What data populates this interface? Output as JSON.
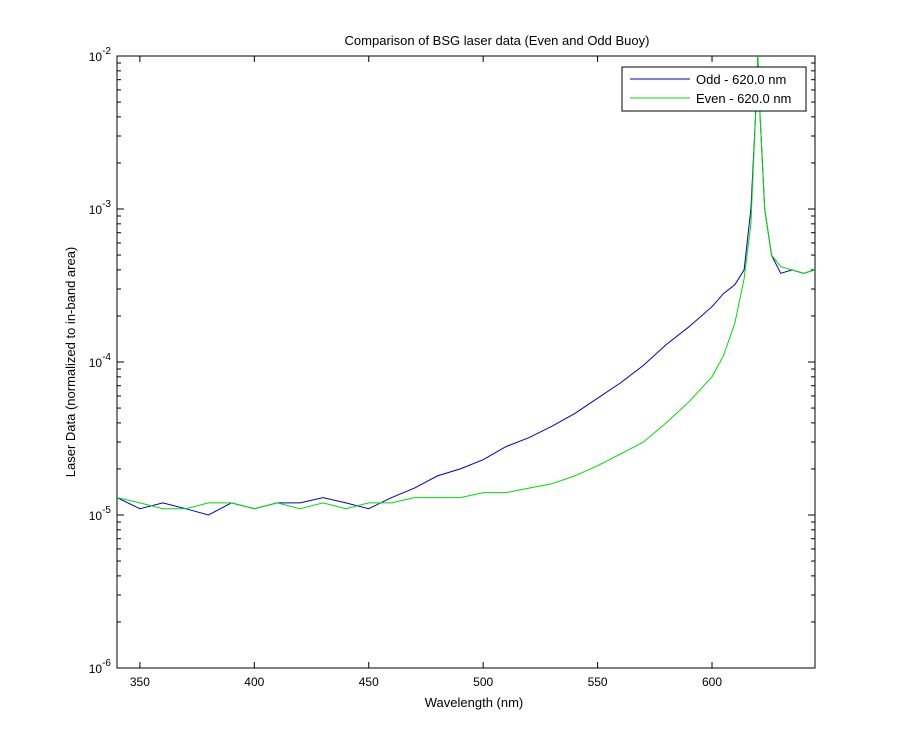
{
  "chart_data": {
    "type": "line",
    "title": "Comparison of BSG laser data (Even and Odd Buoy)",
    "xlabel": "Wavelength (nm)",
    "ylabel": "Laser Data (normalized to in-band area)",
    "xlim": [
      340,
      645
    ],
    "ylim": [
      1e-06,
      0.01
    ],
    "yscale": "log",
    "xticks": [
      350,
      400,
      450,
      500,
      550,
      600
    ],
    "yticks": [
      {
        "base": "10",
        "exp": "-6"
      },
      {
        "base": "10",
        "exp": "-5"
      },
      {
        "base": "10",
        "exp": "-4"
      },
      {
        "base": "10",
        "exp": "-3"
      },
      {
        "base": "10",
        "exp": "-2"
      }
    ],
    "grid": false,
    "legend_position": "top-right",
    "series": [
      {
        "name": "Odd - 620.0 nm",
        "color": "#0000c8",
        "x": [
          340,
          350,
          360,
          370,
          380,
          390,
          400,
          410,
          420,
          430,
          440,
          450,
          460,
          470,
          480,
          490,
          500,
          510,
          520,
          530,
          540,
          550,
          560,
          570,
          580,
          590,
          600,
          605,
          610,
          614,
          617,
          619,
          620,
          621,
          623,
          626,
          630,
          635,
          640,
          645
        ],
        "values": [
          1.3e-05,
          1.1e-05,
          1.2e-05,
          1.1e-05,
          1e-05,
          1.2e-05,
          1.1e-05,
          1.2e-05,
          1.2e-05,
          1.3e-05,
          1.2e-05,
          1.1e-05,
          1.3e-05,
          1.5e-05,
          1.8e-05,
          2e-05,
          2.3e-05,
          2.8e-05,
          3.2e-05,
          3.8e-05,
          4.6e-05,
          5.8e-05,
          7.3e-05,
          9.5e-05,
          0.00013,
          0.00017,
          0.00023,
          0.00028,
          0.00032,
          0.0004,
          0.001,
          0.004,
          0.01,
          0.004,
          0.001,
          0.0005,
          0.00038,
          0.0004,
          0.00038,
          0.0004
        ]
      },
      {
        "name": "Even - 620.0 nm",
        "color": "#00dc00",
        "x": [
          340,
          350,
          360,
          370,
          380,
          390,
          400,
          410,
          420,
          430,
          440,
          450,
          460,
          470,
          480,
          490,
          500,
          510,
          520,
          530,
          540,
          550,
          560,
          570,
          580,
          590,
          600,
          605,
          610,
          614,
          617,
          619,
          620,
          621,
          623,
          626,
          630,
          635,
          640,
          645
        ],
        "values": [
          1.3e-05,
          1.2e-05,
          1.1e-05,
          1.1e-05,
          1.2e-05,
          1.2e-05,
          1.1e-05,
          1.2e-05,
          1.1e-05,
          1.2e-05,
          1.1e-05,
          1.2e-05,
          1.2e-05,
          1.3e-05,
          1.3e-05,
          1.3e-05,
          1.4e-05,
          1.4e-05,
          1.5e-05,
          1.6e-05,
          1.8e-05,
          2.1e-05,
          2.5e-05,
          3e-05,
          4e-05,
          5.5e-05,
          8e-05,
          0.00011,
          0.00018,
          0.00035,
          0.0008,
          0.004,
          0.01,
          0.004,
          0.001,
          0.0005,
          0.00042,
          0.0004,
          0.00038,
          0.0004
        ]
      }
    ]
  }
}
